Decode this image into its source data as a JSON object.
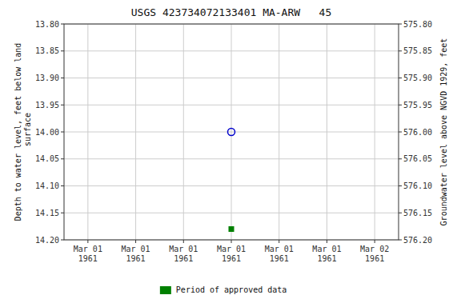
{
  "chart_data": {
    "type": "scatter",
    "title": "USGS 423734072133401 MA-ARW   45",
    "ylabel": "Depth to water level, feet below land\n surface",
    "y2label": "Groundwater level above NGVD 1929, feet",
    "categories": [
      "Mar 01\n1961",
      "Mar 01\n1961",
      "Mar 01\n1961",
      "Mar 01\n1961",
      "Mar 01\n1961",
      "Mar 01\n1961",
      "Mar 02\n1961"
    ],
    "series": [
      {
        "color": "#0000cc",
        "marker": "open-circle",
        "values": [
          null,
          null,
          null,
          14.0,
          null,
          null,
          null
        ]
      },
      {
        "name": "Period of approved data",
        "color": "#008000",
        "marker": "square",
        "values": [
          null,
          null,
          null,
          14.18,
          null,
          null,
          null
        ]
      }
    ],
    "ylim": [
      14.2,
      13.8
    ],
    "yticks": [
      {
        "value": 13.8,
        "label": "13.80"
      },
      13.85,
      {
        "value": 13.9,
        "label": "13.90"
      },
      13.95,
      {
        "value": 14.0,
        "label": "14.00"
      },
      14.05,
      {
        "value": 14.1,
        "label": "14.10"
      },
      14.15,
      {
        "value": 14.2,
        "label": "14.20"
      }
    ],
    "y2lim": [
      576.2,
      575.8
    ],
    "y2ticks": [
      {
        "value": 576.2,
        "label": "576.20"
      },
      576.15,
      {
        "value": 576.1,
        "label": "576.10"
      },
      576.05,
      {
        "value": 576.0,
        "label": "576.00"
      },
      575.95,
      {
        "value": 575.9,
        "label": "575.90"
      },
      575.85,
      {
        "value": 575.8,
        "label": "575.80"
      }
    ],
    "grid": true,
    "legend": "bottom",
    "color": "#cccccc"
  }
}
